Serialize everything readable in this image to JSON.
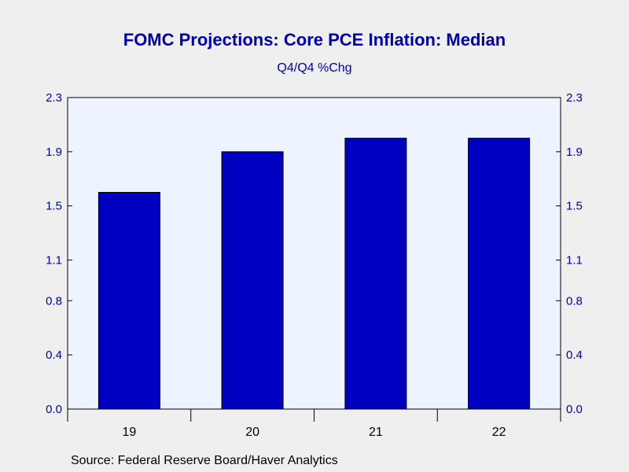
{
  "title": "FOMC Projections: Core PCE Inflation: Median",
  "subtitle": "Q4/Q4 %Chg",
  "source": "Source:  Federal Reserve Board/Haver Analytics",
  "colors": {
    "bar": "#0000c0",
    "text": "#0000b0",
    "plot_background": "#eef4ff",
    "page_background": "#efefef"
  },
  "chart_data": {
    "type": "bar",
    "categories": [
      "19",
      "20",
      "21",
      "22"
    ],
    "values": [
      1.6,
      1.9,
      2.0,
      2.0
    ],
    "ylim": [
      0.0,
      2.3
    ],
    "yticks": [
      "0.0",
      "0.4",
      "0.8",
      "1.1",
      "1.5",
      "1.9",
      "2.3"
    ],
    "xlabel": "",
    "ylabel": "",
    "grid": false,
    "legend": "none",
    "dual_y_axis": true
  }
}
